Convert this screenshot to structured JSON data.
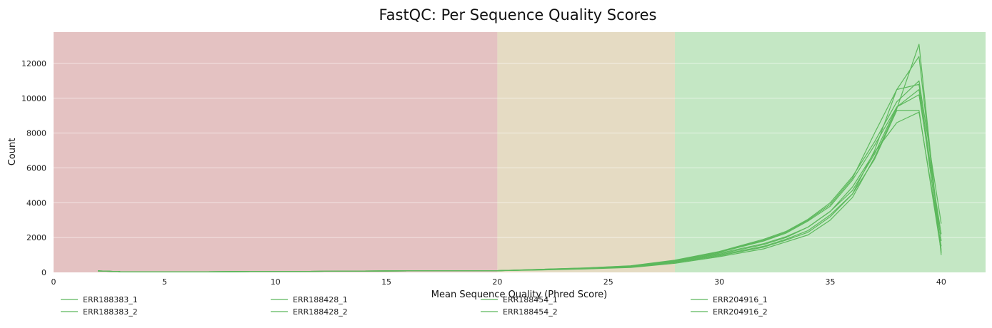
{
  "chart_data": {
    "type": "line",
    "title": "FastQC: Per Sequence Quality Scores",
    "xlabel": "Mean Sequence Quality (Phred Score)",
    "ylabel": "Count",
    "xlim": [
      0,
      42
    ],
    "ylim": [
      0,
      13800
    ],
    "xticks": [
      0,
      5,
      10,
      15,
      20,
      25,
      30,
      35,
      40
    ],
    "yticks": [
      0,
      2000,
      4000,
      6000,
      8000,
      10000,
      12000
    ],
    "grid": "horizontal",
    "legend_position": "bottom",
    "line_color": "#5cb85c",
    "bands": [
      {
        "from": 0,
        "to": 20,
        "color": "#e4c2c2",
        "status": "fail"
      },
      {
        "from": 20,
        "to": 28,
        "color": "#e5dbc3",
        "status": "warn"
      },
      {
        "from": 28,
        "to": 42,
        "color": "#c4e7c4",
        "status": "pass"
      }
    ],
    "series": [
      {
        "name": "ERR188383_1",
        "x": [
          2,
          3,
          5,
          8,
          10,
          13,
          15,
          17,
          20,
          22,
          24,
          26,
          28,
          30,
          32,
          33,
          34,
          35,
          36,
          37,
          38,
          39,
          40
        ],
        "y": [
          90,
          40,
          30,
          40,
          50,
          70,
          80,
          90,
          100,
          160,
          230,
          330,
          620,
          1100,
          1650,
          2050,
          2600,
          3500,
          4700,
          6800,
          9500,
          10500,
          1300
        ]
      },
      {
        "name": "ERR188383_2",
        "x": [
          2,
          3,
          5,
          8,
          10,
          13,
          15,
          17,
          20,
          22,
          24,
          26,
          28,
          30,
          32,
          33,
          34,
          35,
          36,
          37,
          38,
          39,
          40
        ],
        "y": [
          80,
          40,
          30,
          40,
          50,
          70,
          80,
          90,
          100,
          150,
          220,
          310,
          580,
          1000,
          1500,
          1900,
          2400,
          3300,
          4500,
          6500,
          9300,
          9300,
          1200
        ]
      },
      {
        "name": "ERR188428_1",
        "x": [
          2,
          3,
          5,
          8,
          10,
          13,
          15,
          17,
          20,
          22,
          24,
          26,
          28,
          30,
          32,
          33,
          34,
          35,
          36,
          37,
          38,
          39,
          40
        ],
        "y": [
          90,
          40,
          30,
          40,
          50,
          70,
          80,
          90,
          100,
          180,
          260,
          380,
          700,
          1200,
          1900,
          2350,
          3050,
          4000,
          5500,
          7500,
          9800,
          11000,
          2800
        ]
      },
      {
        "name": "ERR188428_2",
        "x": [
          2,
          3,
          5,
          8,
          10,
          13,
          15,
          17,
          20,
          22,
          24,
          26,
          28,
          30,
          32,
          33,
          34,
          35,
          36,
          37,
          38,
          39,
          40
        ],
        "y": [
          80,
          40,
          30,
          40,
          50,
          70,
          80,
          90,
          100,
          170,
          240,
          360,
          660,
          1150,
          1800,
          2250,
          2950,
          3800,
          5300,
          7300,
          9500,
          10200,
          2200
        ]
      },
      {
        "name": "ERR188454_1",
        "x": [
          2,
          3,
          5,
          8,
          10,
          13,
          15,
          17,
          20,
          22,
          24,
          26,
          28,
          30,
          32,
          33,
          34,
          35,
          36,
          37,
          38,
          39,
          40
        ],
        "y": [
          90,
          40,
          30,
          40,
          50,
          70,
          80,
          90,
          100,
          140,
          200,
          280,
          520,
          900,
          1350,
          1750,
          2150,
          3000,
          4300,
          6600,
          9400,
          13100,
          1000
        ]
      },
      {
        "name": "ERR188454_2",
        "x": [
          2,
          3,
          5,
          8,
          10,
          13,
          15,
          17,
          20,
          22,
          24,
          26,
          28,
          30,
          32,
          33,
          34,
          35,
          36,
          37,
          38,
          39,
          40
        ],
        "y": [
          80,
          40,
          30,
          40,
          50,
          70,
          80,
          90,
          100,
          150,
          210,
          300,
          560,
          950,
          1450,
          1850,
          2300,
          3200,
          4500,
          7000,
          10500,
          12400,
          1100
        ]
      },
      {
        "name": "ERR204916_1",
        "x": [
          2,
          3,
          5,
          8,
          10,
          13,
          15,
          17,
          20,
          22,
          24,
          26,
          28,
          30,
          32,
          33,
          34,
          35,
          36,
          37,
          38,
          39,
          40
        ],
        "y": [
          90,
          40,
          30,
          40,
          50,
          70,
          80,
          90,
          100,
          175,
          250,
          370,
          680,
          1180,
          1850,
          2300,
          3000,
          3900,
          5400,
          8000,
          10500,
          10800,
          1800
        ]
      },
      {
        "name": "ERR204916_2",
        "x": [
          2,
          3,
          5,
          8,
          10,
          13,
          15,
          17,
          20,
          22,
          24,
          26,
          28,
          30,
          32,
          33,
          34,
          35,
          36,
          37,
          38,
          39,
          40
        ],
        "y": [
          80,
          40,
          30,
          40,
          50,
          70,
          80,
          90,
          100,
          160,
          230,
          340,
          620,
          1050,
          1600,
          2000,
          2600,
          3500,
          4900,
          6900,
          8600,
          9200,
          1500
        ]
      }
    ]
  }
}
